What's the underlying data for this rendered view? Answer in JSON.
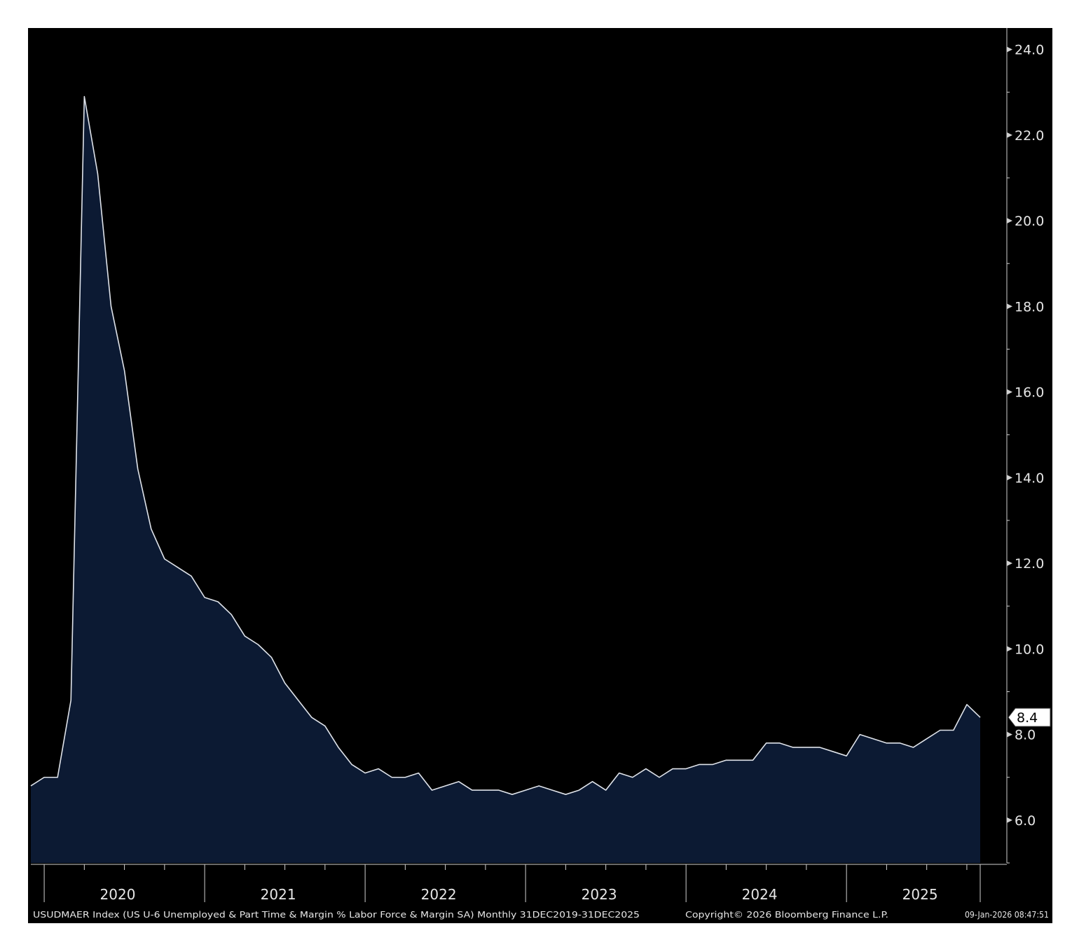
{
  "chart_data": {
    "type": "area",
    "title": "",
    "xlabel": "",
    "ylabel": "",
    "x_start": "2019-12",
    "x_end": "2025-12",
    "x_tick_labels": [
      "2020",
      "2021",
      "2022",
      "2023",
      "2024",
      "2025"
    ],
    "y_ticks": [
      "6.0",
      "8.0",
      "10.0",
      "12.0",
      "14.0",
      "16.0",
      "18.0",
      "20.0",
      "22.0",
      "24.0"
    ],
    "ylim": [
      5.0,
      24.5
    ],
    "grid": false,
    "last_value_label": "8.4",
    "series": [
      {
        "values": [
          6.8,
          7.0,
          7.0,
          8.8,
          22.9,
          21.1,
          18.0,
          16.5,
          14.2,
          12.8,
          12.1,
          11.9,
          11.7,
          11.2,
          11.1,
          10.8,
          10.3,
          10.1,
          9.8,
          9.2,
          8.8,
          8.4,
          8.2,
          7.7,
          7.3,
          7.1,
          7.2,
          7.0,
          7.0,
          7.1,
          6.7,
          6.8,
          6.9,
          6.7,
          6.7,
          6.7,
          6.6,
          6.7,
          6.8,
          6.7,
          6.6,
          6.7,
          6.9,
          6.7,
          7.1,
          7.0,
          7.2,
          7.0,
          7.2,
          7.2,
          7.3,
          7.3,
          7.4,
          7.4,
          7.4,
          7.8,
          7.8,
          7.7,
          7.7,
          7.7,
          7.6,
          7.5,
          8.0,
          7.9,
          7.8,
          7.8,
          7.7,
          7.9,
          8.1,
          8.1,
          8.7,
          8.4
        ]
      }
    ],
    "colors": {
      "background": "#000000",
      "area_fill": "#0c1a33",
      "line": "#dfe3ea",
      "axis": "#d0d0d0",
      "text": "#e6e6e6"
    }
  },
  "footer": {
    "description": "USUDMAER Index (US U-6 Unemployed & Part Time & Margin % Labor Force & Margin SA) Monthly 31DEC2019-31DEC2025",
    "copyright": "Copyright© 2026 Bloomberg Finance L.P.",
    "timestamp": "09-Jan-2026 08:47:51"
  }
}
